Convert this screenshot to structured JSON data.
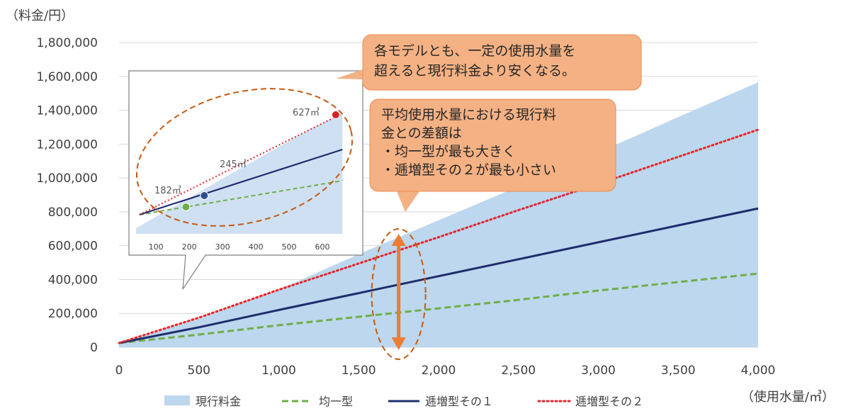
{
  "chart_data": {
    "type": "area",
    "ylabel": "（料金/円）",
    "xlabel": "（使用水量/㎥）",
    "x_ticks": [
      "0",
      "500",
      "1,000",
      "1,500",
      "2,000",
      "2,500",
      "3,000",
      "3,500",
      "4,000"
    ],
    "y_ticks": [
      "0",
      "200,000",
      "400,000",
      "600,000",
      "800,000",
      "1,000,000",
      "1,200,000",
      "1,400,000",
      "1,600,000",
      "1,800,000"
    ],
    "xlim": [
      0,
      4000
    ],
    "ylim": [
      0,
      1800000
    ],
    "grid": true,
    "legend_position": "bottom",
    "series": [
      {
        "name": "現行料金",
        "kind": "area",
        "color": "#bdd7ee",
        "x": [
          0,
          500,
          1000,
          1500,
          2000,
          2500,
          3000,
          3500,
          4000
        ],
        "y": [
          20000,
          170000,
          340000,
          550000,
          750000,
          950000,
          1150000,
          1360000,
          1565000
        ]
      },
      {
        "name": "均一型",
        "kind": "dashed",
        "color": "#70ad47",
        "x": [
          0,
          500,
          1000,
          1500,
          2000,
          2500,
          3000,
          3500,
          4000
        ],
        "y": [
          25000,
          75000,
          130000,
          180000,
          230000,
          280000,
          335000,
          385000,
          435000
        ]
      },
      {
        "name": "逓増型その１",
        "kind": "solid",
        "color": "#1f2d6b",
        "x": [
          0,
          500,
          1000,
          1500,
          2000,
          2500,
          3000,
          3500,
          4000
        ],
        "y": [
          25000,
          118000,
          220000,
          320000,
          420000,
          520000,
          620000,
          720000,
          820000
        ]
      },
      {
        "name": "逓増型その２",
        "kind": "dotted",
        "color": "#e3262d",
        "x": [
          0,
          500,
          1000,
          1500,
          2000,
          2500,
          3000,
          3500,
          4000
        ],
        "y": [
          25000,
          175000,
          340000,
          495000,
          650000,
          810000,
          965000,
          1125000,
          1285000
        ]
      }
    ],
    "marker_x": 1750,
    "inset": {
      "x_ticks": [
        "100",
        "200",
        "300",
        "400",
        "500",
        "600"
      ],
      "xlim": [
        40,
        700
      ],
      "points": [
        {
          "label": "182㎥",
          "x": 190,
          "color": "#70ad47"
        },
        {
          "label": "245㎥",
          "x": 245,
          "color": "#2e4f8f"
        },
        {
          "label": "627㎥",
          "x": 640,
          "color": "#d9202b"
        }
      ]
    },
    "annotations": [
      {
        "lines": [
          "各モデルとも、一定の使用水量を",
          "超えると現行料金より安くなる。"
        ]
      },
      {
        "lines": [
          "平均使用水量における現行料",
          "金との差額は",
          "・均一型が最も大きく",
          "・逓増型その２が最も小さい"
        ]
      }
    ]
  }
}
